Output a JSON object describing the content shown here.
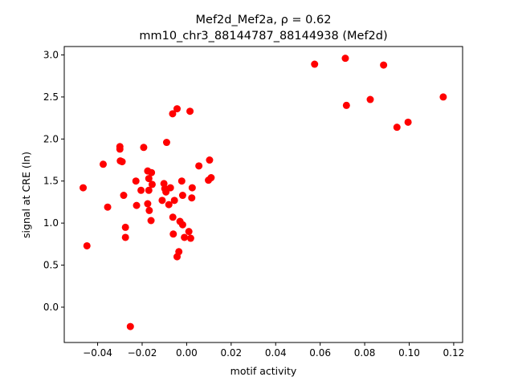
{
  "chart_data": {
    "type": "scatter",
    "title_line1": "Mef2d_Mef2a, ρ = 0.62",
    "title_line2": "mm10_chr3_88144787_88144938 (Mef2d)",
    "xlabel": "motif activity",
    "ylabel": "signal at CRE (ln)",
    "xlim": [
      -0.055,
      0.124
    ],
    "ylim": [
      -0.42,
      3.1
    ],
    "xticks": [
      -0.04,
      -0.02,
      0.0,
      0.02,
      0.04,
      0.06,
      0.08,
      0.1,
      0.12
    ],
    "xtick_labels": [
      "−0.04",
      "−0.02",
      "0.00",
      "0.02",
      "0.04",
      "0.06",
      "0.08",
      "0.10",
      "0.12"
    ],
    "yticks": [
      0.0,
      0.5,
      1.0,
      1.5,
      2.0,
      2.5,
      3.0
    ],
    "ytick_labels": [
      "0.0",
      "0.5",
      "1.0",
      "1.5",
      "2.0",
      "2.5",
      "3.0"
    ],
    "grid": false,
    "marker_color": "#ff0000",
    "points": [
      {
        "x": -0.0465,
        "y": 1.42
      },
      {
        "x": -0.0448,
        "y": 0.73
      },
      {
        "x": -0.0375,
        "y": 1.7
      },
      {
        "x": -0.0355,
        "y": 1.19
      },
      {
        "x": -0.03,
        "y": 1.91
      },
      {
        "x": -0.03,
        "y": 1.88
      },
      {
        "x": -0.0298,
        "y": 1.74
      },
      {
        "x": -0.029,
        "y": 1.73
      },
      {
        "x": -0.0283,
        "y": 1.33
      },
      {
        "x": -0.0275,
        "y": 0.95
      },
      {
        "x": -0.0275,
        "y": 0.83
      },
      {
        "x": -0.0253,
        "y": -0.23
      },
      {
        "x": -0.0228,
        "y": 1.5
      },
      {
        "x": -0.0225,
        "y": 1.21
      },
      {
        "x": -0.0205,
        "y": 1.39
      },
      {
        "x": -0.0193,
        "y": 1.9
      },
      {
        "x": -0.0175,
        "y": 1.62
      },
      {
        "x": -0.0175,
        "y": 1.23
      },
      {
        "x": -0.017,
        "y": 1.53
      },
      {
        "x": -0.017,
        "y": 1.39
      },
      {
        "x": -0.0168,
        "y": 1.15
      },
      {
        "x": -0.016,
        "y": 1.03
      },
      {
        "x": -0.0158,
        "y": 1.6
      },
      {
        "x": -0.0155,
        "y": 1.46
      },
      {
        "x": -0.011,
        "y": 1.27
      },
      {
        "x": -0.0102,
        "y": 1.47
      },
      {
        "x": -0.0098,
        "y": 1.41
      },
      {
        "x": -0.0093,
        "y": 1.37
      },
      {
        "x": -0.009,
        "y": 1.96
      },
      {
        "x": -0.008,
        "y": 1.22
      },
      {
        "x": -0.0073,
        "y": 1.42
      },
      {
        "x": -0.0063,
        "y": 2.3
      },
      {
        "x": -0.0062,
        "y": 1.07
      },
      {
        "x": -0.006,
        "y": 0.87
      },
      {
        "x": -0.0055,
        "y": 1.27
      },
      {
        "x": -0.0043,
        "y": 2.36
      },
      {
        "x": -0.0043,
        "y": 0.6
      },
      {
        "x": -0.0035,
        "y": 0.66
      },
      {
        "x": -0.003,
        "y": 1.02
      },
      {
        "x": -0.0022,
        "y": 1.5
      },
      {
        "x": -0.0018,
        "y": 1.33
      },
      {
        "x": -0.0018,
        "y": 0.98
      },
      {
        "x": -0.001,
        "y": 0.83
      },
      {
        "x": 0.001,
        "y": 0.9
      },
      {
        "x": 0.0015,
        "y": 2.33
      },
      {
        "x": 0.0018,
        "y": 0.82
      },
      {
        "x": 0.0023,
        "y": 1.3
      },
      {
        "x": 0.0025,
        "y": 1.42
      },
      {
        "x": 0.0055,
        "y": 1.68
      },
      {
        "x": 0.0098,
        "y": 1.51
      },
      {
        "x": 0.0103,
        "y": 1.75
      },
      {
        "x": 0.011,
        "y": 1.54
      },
      {
        "x": 0.0575,
        "y": 2.89
      },
      {
        "x": 0.0713,
        "y": 2.96
      },
      {
        "x": 0.0718,
        "y": 2.4
      },
      {
        "x": 0.0825,
        "y": 2.47
      },
      {
        "x": 0.0885,
        "y": 2.88
      },
      {
        "x": 0.0945,
        "y": 2.14
      },
      {
        "x": 0.0995,
        "y": 2.2
      },
      {
        "x": 0.1153,
        "y": 2.5
      }
    ]
  }
}
